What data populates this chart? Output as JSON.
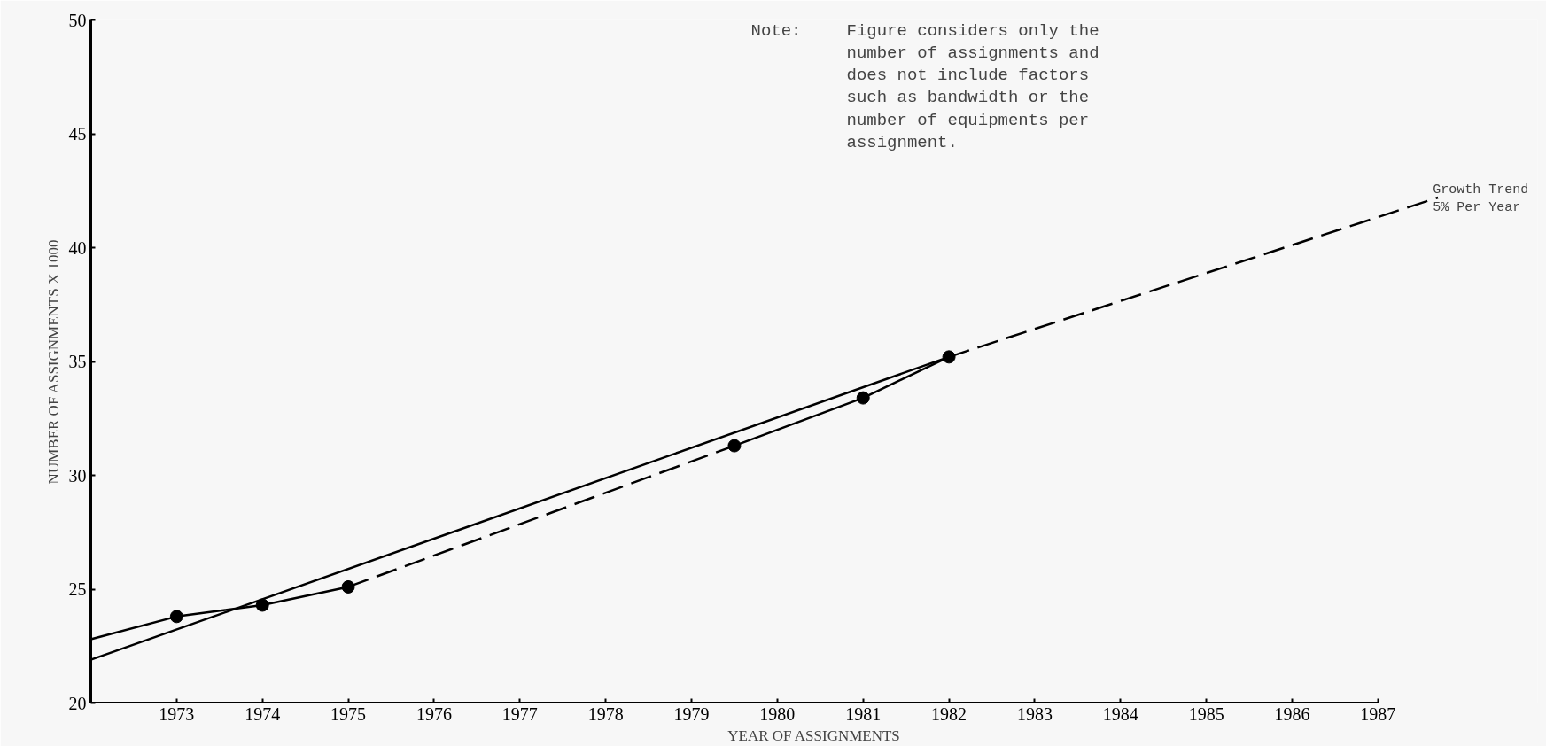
{
  "chart_data": {
    "type": "line",
    "xlabel": "YEAR OF ASSIGNMENTS",
    "ylabel": "NUMBER OF ASSIGNMENTS X 1000",
    "xlim": [
      1972,
      1988.86
    ],
    "ylim": [
      20,
      50
    ],
    "xticks": [
      {
        "value": 1972,
        "label": null
      },
      1973,
      1974,
      1975,
      1976,
      1977,
      1978,
      1979,
      1980,
      1981,
      1982,
      1983,
      1984,
      1985,
      1986,
      1987
    ],
    "yticks": [
      20,
      25,
      30,
      35,
      40,
      45,
      50
    ],
    "grid": false,
    "series": [
      {
        "color": "#000000",
        "line_style": "solid",
        "x": [
          1972,
          1973
        ],
        "values": [
          22.8,
          23.8
        ]
      },
      {
        "color": "#000000",
        "marker": "circle",
        "line_style": "solid",
        "x": [
          1973,
          1974,
          1975
        ],
        "values": [
          23.8,
          24.3,
          25.1
        ]
      },
      {
        "color": "#000000",
        "line_style": "dashed",
        "x": [
          1975,
          1979.5
        ],
        "values": [
          25.1,
          31.3
        ]
      },
      {
        "color": "#000000",
        "marker": "circle",
        "line_style": "solid",
        "x": [
          1979.5,
          1981,
          1982
        ],
        "values": [
          31.3,
          33.4,
          35.2
        ]
      },
      {
        "color": "#000000",
        "marker": "none",
        "line_style": "solid",
        "x": [
          1972,
          1982
        ],
        "values": [
          21.9,
          35.2
        ]
      },
      {
        "color": "#000000",
        "marker": "none",
        "line_style": "dashed",
        "x": [
          1982,
          1987.7
        ],
        "values": [
          35.2,
          42.2
        ]
      }
    ],
    "annotations": [
      "Note:",
      "Figure considers only the\nnumber of assignments and\ndoes  not include factors\nsuch as  bandwidth or the\nnumber of  equipments per\nassignment.",
      {
        "text": "Growth Trend\n5% Per Year",
        "x": 1987.7,
        "y": 42.2
      }
    ]
  }
}
